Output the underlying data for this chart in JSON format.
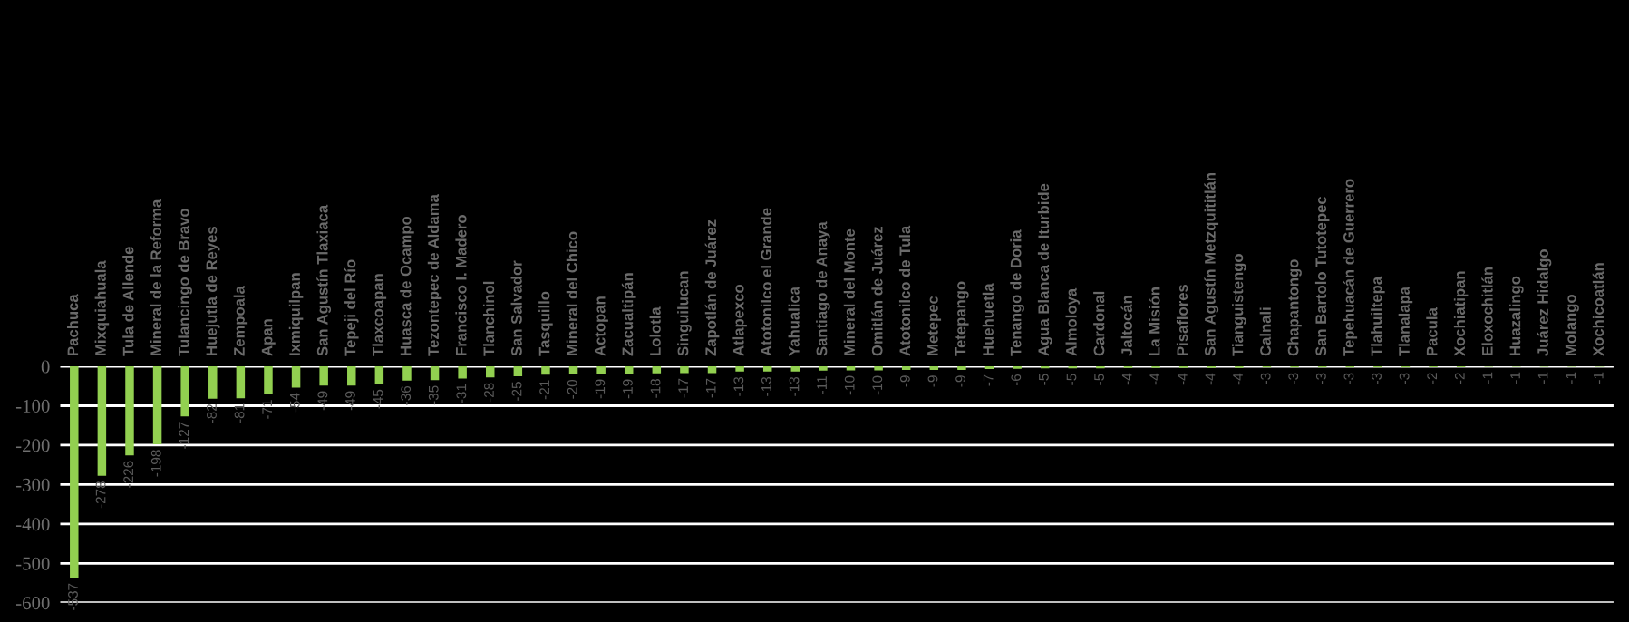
{
  "chart_data": {
    "type": "bar",
    "categories": [
      "Pachuca",
      "Mixquiahuala",
      "Tula de Allende",
      "Mineral de la Reforma",
      "Tulancingo de Bravo",
      "Huejutla de Reyes",
      "Zempoala",
      "Apan",
      "Ixmiquilpan",
      "San Agustín Tlaxiaca",
      "Tepeji del Río",
      "Tlaxcoapan",
      "Huasca de Ocampo",
      "Tezontepec de Aldama",
      "Francisco I. Madero",
      "Tlanchinol",
      "San Salvador",
      "Tasquillo",
      "Mineral del Chico",
      "Actopan",
      "Zacualtipán",
      "Lolotla",
      "Singuilucan",
      "Zapotlán de Juárez",
      "Atlapexco",
      "Atotonilco el Grande",
      "Yahualica",
      "Santiago de Anaya",
      "Mineral del Monte",
      "Omitlán de Juárez",
      "Atotonilco de Tula",
      "Metepec",
      "Tetepango",
      "Huehuetla",
      "Tenango de Doria",
      "Agua Blanca de Iturbide",
      "Almoloya",
      "Cardonal",
      "Jaltocán",
      "La Misión",
      "Pisaflores",
      "San Agustín Metzquititlán",
      "Tianguistengo",
      "Calnali",
      "Chapantongo",
      "San Bartolo Tutotepec",
      "Tepehuacán de Guerrero",
      "Tlahuiltepa",
      "Tlanalapa",
      "Pacula",
      "Xochiatipan",
      "Eloxochitlán",
      "Huazalingo",
      "Juárez Hidalgo",
      "Molango",
      "Xochicoatlán"
    ],
    "values": [
      -537,
      -278,
      -226,
      -198,
      -127,
      -82,
      -81,
      -71,
      -54,
      -49,
      -49,
      -45,
      -36,
      -35,
      -31,
      -28,
      -25,
      -21,
      -20,
      -19,
      -19,
      -18,
      -17,
      -17,
      -13,
      -13,
      -13,
      -11,
      -10,
      -10,
      -9,
      -9,
      -9,
      -7,
      -6,
      -5,
      -5,
      -5,
      -4,
      -4,
      -4,
      -4,
      -4,
      -3,
      -3,
      -3,
      -3,
      -3,
      -3,
      -2,
      -2,
      -1,
      -1,
      -1,
      -1,
      -1
    ],
    "color": "#92d050",
    "ylim": [
      -600,
      0
    ],
    "yticks": [
      -600,
      -500,
      -400,
      -300,
      -200,
      -100,
      0
    ],
    "grid": "y",
    "data_labels": true
  }
}
